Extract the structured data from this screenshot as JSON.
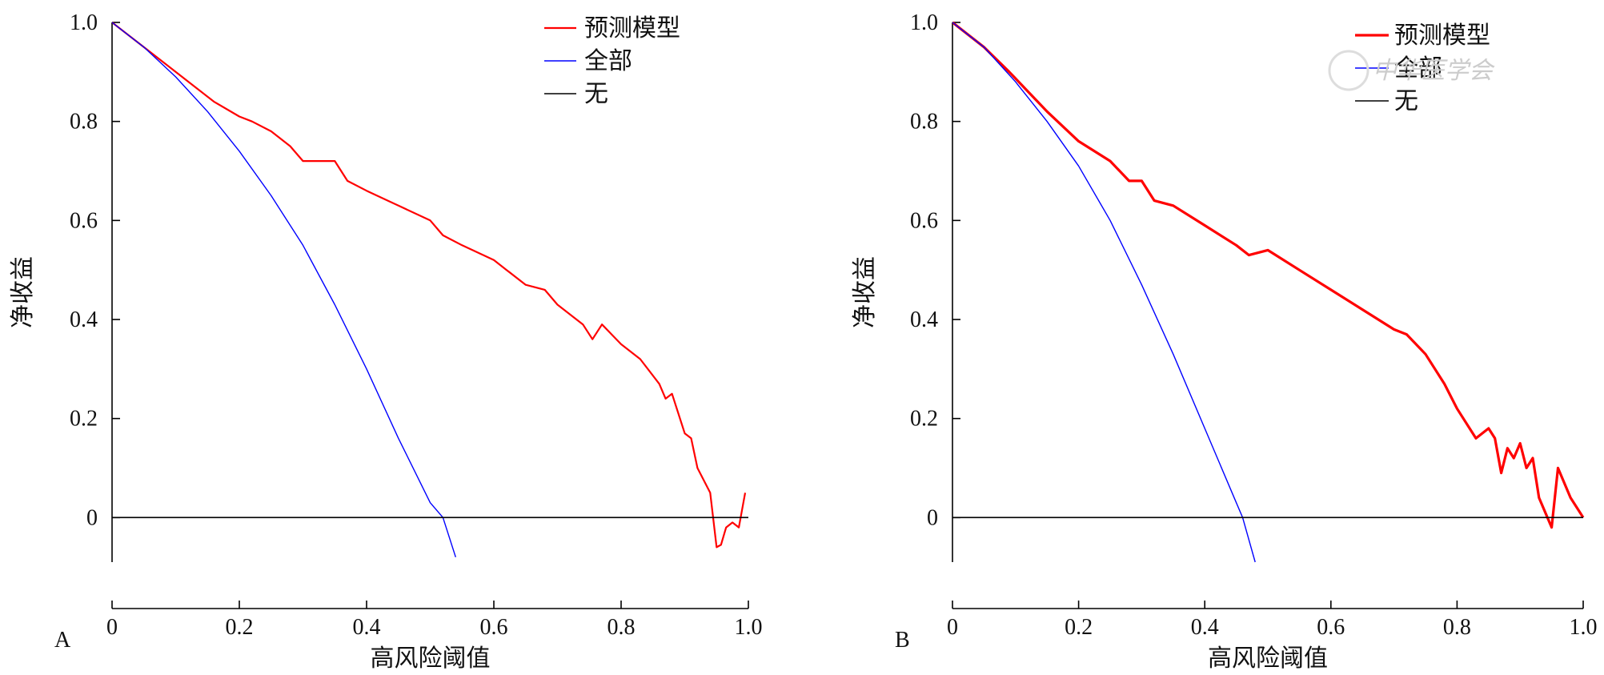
{
  "figure": {
    "watermark": "中华医学会"
  },
  "chart_data": [
    {
      "type": "line",
      "panel_label": "A",
      "xlabel": "高风险阈值",
      "ylabel": "净收益",
      "xlim": [
        0,
        1.0
      ],
      "ylim": [
        -0.09,
        1.0
      ],
      "x_ticks": [
        0,
        0.2,
        0.4,
        0.6,
        0.8,
        1.0
      ],
      "x_tick_labels": [
        "0",
        "0.2",
        "0.4",
        "0.6",
        "0.8",
        "1.0"
      ],
      "y_ticks": [
        0,
        0.2,
        0.4,
        0.6,
        0.8,
        1.0
      ],
      "y_tick_labels": [
        "0",
        "0.2",
        "0.4",
        "0.6",
        "0.8",
        "1.0"
      ],
      "legend_position": "top-right",
      "grid": false,
      "series": [
        {
          "name": "预测模型",
          "color": "#ff0000",
          "x": [
            0.0,
            0.05,
            0.1,
            0.13,
            0.16,
            0.2,
            0.22,
            0.25,
            0.28,
            0.3,
            0.35,
            0.37,
            0.4,
            0.45,
            0.5,
            0.52,
            0.55,
            0.6,
            0.62,
            0.65,
            0.68,
            0.7,
            0.74,
            0.755,
            0.77,
            0.8,
            0.83,
            0.86,
            0.87,
            0.88,
            0.9,
            0.91,
            0.92,
            0.94,
            0.95,
            0.957,
            0.965,
            0.975,
            0.985,
            0.995
          ],
          "y": [
            1.0,
            0.95,
            0.9,
            0.87,
            0.84,
            0.81,
            0.8,
            0.78,
            0.75,
            0.72,
            0.72,
            0.68,
            0.66,
            0.63,
            0.6,
            0.57,
            0.55,
            0.52,
            0.5,
            0.47,
            0.46,
            0.43,
            0.39,
            0.36,
            0.39,
            0.35,
            0.32,
            0.27,
            0.24,
            0.25,
            0.17,
            0.16,
            0.1,
            0.05,
            -0.06,
            -0.055,
            -0.02,
            -0.01,
            -0.02,
            0.05
          ]
        },
        {
          "name": "全部",
          "color": "#0000ff",
          "x": [
            0.0,
            0.05,
            0.1,
            0.15,
            0.2,
            0.25,
            0.3,
            0.35,
            0.4,
            0.45,
            0.5,
            0.52,
            0.54
          ],
          "y": [
            1.0,
            0.95,
            0.89,
            0.82,
            0.74,
            0.65,
            0.55,
            0.43,
            0.3,
            0.16,
            0.03,
            0.0,
            -0.08
          ]
        },
        {
          "name": "无",
          "color": "#000000",
          "x": [
            0.0,
            1.0
          ],
          "y": [
            0,
            0
          ]
        }
      ]
    },
    {
      "type": "line",
      "panel_label": "B",
      "xlabel": "高风险阈值",
      "ylabel": "净收益",
      "xlim": [
        0,
        1.0
      ],
      "ylim": [
        -0.09,
        1.0
      ],
      "x_ticks": [
        0,
        0.2,
        0.4,
        0.6,
        0.8,
        1.0
      ],
      "x_tick_labels": [
        "0",
        "0.2",
        "0.4",
        "0.6",
        "0.8",
        "1.0"
      ],
      "y_ticks": [
        0,
        0.2,
        0.4,
        0.6,
        0.8,
        1.0
      ],
      "y_tick_labels": [
        "0",
        "0.2",
        "0.4",
        "0.6",
        "0.8",
        "1.0"
      ],
      "legend_position": "top-right",
      "grid": false,
      "series": [
        {
          "name": "预测模型",
          "color": "#ff0000",
          "x": [
            0.0,
            0.05,
            0.09,
            0.12,
            0.15,
            0.2,
            0.25,
            0.28,
            0.3,
            0.32,
            0.35,
            0.4,
            0.45,
            0.47,
            0.5,
            0.55,
            0.6,
            0.65,
            0.7,
            0.72,
            0.75,
            0.78,
            0.8,
            0.83,
            0.85,
            0.86,
            0.87,
            0.88,
            0.89,
            0.9,
            0.91,
            0.92,
            0.93,
            0.95,
            0.96,
            0.98,
            1.0
          ],
          "y": [
            1.0,
            0.95,
            0.9,
            0.86,
            0.82,
            0.76,
            0.72,
            0.68,
            0.68,
            0.64,
            0.63,
            0.59,
            0.55,
            0.53,
            0.54,
            0.5,
            0.46,
            0.42,
            0.38,
            0.37,
            0.33,
            0.27,
            0.22,
            0.16,
            0.18,
            0.16,
            0.09,
            0.14,
            0.12,
            0.15,
            0.1,
            0.12,
            0.04,
            -0.02,
            0.1,
            0.04,
            0.0
          ]
        },
        {
          "name": "全部",
          "color": "#0000ff",
          "x": [
            0.0,
            0.05,
            0.1,
            0.15,
            0.2,
            0.25,
            0.3,
            0.35,
            0.4,
            0.45,
            0.46,
            0.48
          ],
          "y": [
            1.0,
            0.95,
            0.88,
            0.8,
            0.71,
            0.6,
            0.47,
            0.33,
            0.18,
            0.03,
            0.0,
            -0.09
          ]
        },
        {
          "name": "无",
          "color": "#000000",
          "x": [
            0.0,
            1.0
          ],
          "y": [
            0,
            0
          ]
        }
      ]
    }
  ]
}
